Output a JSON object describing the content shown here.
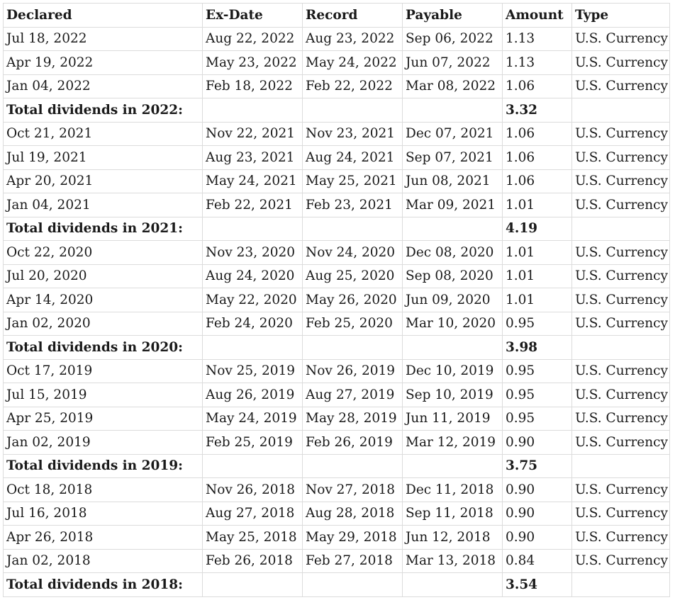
{
  "headers": [
    "Declared",
    "Ex-Date",
    "Record",
    "Payable",
    "Amount",
    "Type"
  ],
  "rows": [
    {
      "kind": "row",
      "cells": [
        "Jul 18, 2022",
        "Aug 22, 2022",
        "Aug 23, 2022",
        "Sep 06, 2022",
        "1.13",
        "U.S. Currency"
      ]
    },
    {
      "kind": "row",
      "cells": [
        "Apr 19, 2022",
        "May 23, 2022",
        "May 24, 2022",
        "Jun 07, 2022",
        "1.13",
        "U.S. Currency"
      ]
    },
    {
      "kind": "row",
      "cells": [
        "Jan 04, 2022",
        "Feb 18, 2022",
        "Feb 22, 2022",
        "Mar 08, 2022",
        "1.06",
        "U.S. Currency"
      ]
    },
    {
      "kind": "total",
      "label": "Total dividends in 2022:",
      "amount": "3.32"
    },
    {
      "kind": "row",
      "cells": [
        "Oct 21, 2021",
        "Nov 22, 2021",
        "Nov 23, 2021",
        "Dec 07, 2021",
        "1.06",
        "U.S. Currency"
      ]
    },
    {
      "kind": "row",
      "cells": [
        "Jul 19, 2021",
        "Aug 23, 2021",
        "Aug 24, 2021",
        "Sep 07, 2021",
        "1.06",
        "U.S. Currency"
      ]
    },
    {
      "kind": "row",
      "cells": [
        "Apr 20, 2021",
        "May 24, 2021",
        "May 25, 2021",
        "Jun 08, 2021",
        "1.06",
        "U.S. Currency"
      ]
    },
    {
      "kind": "row",
      "cells": [
        "Jan 04, 2021",
        "Feb 22, 2021",
        "Feb 23, 2021",
        "Mar 09, 2021",
        "1.01",
        "U.S. Currency"
      ]
    },
    {
      "kind": "total",
      "label": "Total dividends in 2021:",
      "amount": "4.19"
    },
    {
      "kind": "row",
      "cells": [
        "Oct 22, 2020",
        "Nov 23, 2020",
        "Nov 24, 2020",
        "Dec 08, 2020",
        "1.01",
        "U.S. Currency"
      ]
    },
    {
      "kind": "row",
      "cells": [
        "Jul 20, 2020",
        "Aug 24, 2020",
        "Aug 25, 2020",
        "Sep 08, 2020",
        "1.01",
        "U.S. Currency"
      ]
    },
    {
      "kind": "row",
      "cells": [
        "Apr 14, 2020",
        "May 22, 2020",
        "May 26, 2020",
        "Jun 09, 2020",
        "1.01",
        "U.S. Currency"
      ]
    },
    {
      "kind": "row",
      "cells": [
        "Jan 02, 2020",
        "Feb 24, 2020",
        "Feb 25, 2020",
        "Mar 10, 2020",
        "0.95",
        "U.S. Currency"
      ]
    },
    {
      "kind": "total",
      "label": "Total dividends in 2020:",
      "amount": "3.98"
    },
    {
      "kind": "row",
      "cells": [
        "Oct 17, 2019",
        "Nov 25, 2019",
        "Nov 26, 2019",
        "Dec 10, 2019",
        "0.95",
        "U.S. Currency"
      ]
    },
    {
      "kind": "row",
      "cells": [
        "Jul 15, 2019",
        "Aug 26, 2019",
        "Aug 27, 2019",
        "Sep 10, 2019",
        "0.95",
        "U.S. Currency"
      ]
    },
    {
      "kind": "row",
      "cells": [
        "Apr 25, 2019",
        "May 24, 2019",
        "May 28, 2019",
        "Jun 11, 2019",
        "0.95",
        "U.S. Currency"
      ]
    },
    {
      "kind": "row",
      "cells": [
        "Jan 02, 2019",
        "Feb 25, 2019",
        "Feb 26, 2019",
        "Mar 12, 2019",
        "0.90",
        "U.S. Currency"
      ]
    },
    {
      "kind": "total",
      "label": "Total dividends in 2019:",
      "amount": "3.75"
    },
    {
      "kind": "row",
      "cells": [
        "Oct 18, 2018",
        "Nov 26, 2018",
        "Nov 27, 2018",
        "Dec 11, 2018",
        "0.90",
        "U.S. Currency"
      ]
    },
    {
      "kind": "row",
      "cells": [
        "Jul 16, 2018",
        "Aug 27, 2018",
        "Aug 28, 2018",
        "Sep 11, 2018",
        "0.90",
        "U.S. Currency"
      ]
    },
    {
      "kind": "row",
      "cells": [
        "Apr 26, 2018",
        "May 25, 2018",
        "May 29, 2018",
        "Jun 12, 2018",
        "0.90",
        "U.S. Currency"
      ]
    },
    {
      "kind": "row",
      "cells": [
        "Jan 02, 2018",
        "Feb 26, 2018",
        "Feb 27, 2018",
        "Mar 13, 2018",
        "0.84",
        "U.S. Currency"
      ]
    },
    {
      "kind": "total",
      "label": "Total dividends in 2018:",
      "amount": "3.54"
    }
  ],
  "colors": {
    "text": "#1a1a1a",
    "grid": "#dcdcdc",
    "background": "#ffffff"
  }
}
